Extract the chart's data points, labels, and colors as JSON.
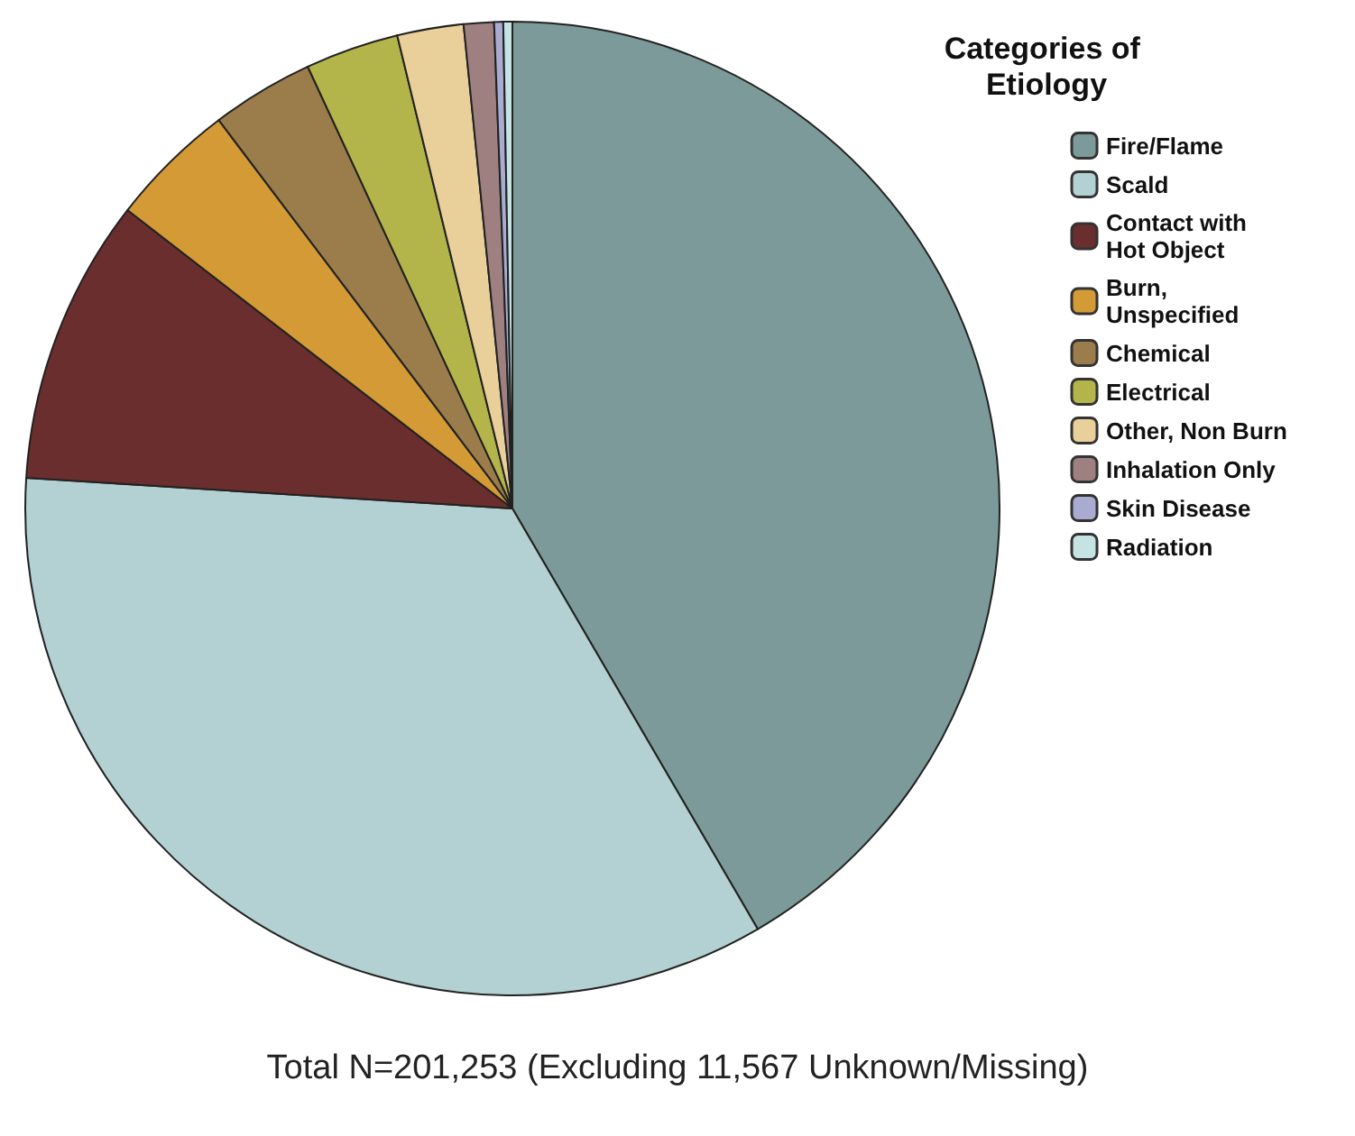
{
  "chart_data": {
    "type": "pie",
    "legend_title": "Categories of Etiology",
    "legend": "right",
    "categories": [
      "Fire/Flame",
      "Scald",
      "Contact with Hot Object",
      "Burn, Unspecified",
      "Chemical",
      "Electrical",
      "Other, Non Burn",
      "Inhalation Only",
      "Skin Disease",
      "Radiation"
    ],
    "values": [
      41.6,
      34.4,
      9.5,
      4.2,
      3.4,
      3.1,
      2.2,
      1.0,
      0.3,
      0.3
    ],
    "colors": [
      "#7b9a99",
      "#b3d1d2",
      "#6b2e2e",
      "#d39a35",
      "#9b7d4b",
      "#b3b54a",
      "#e9d09a",
      "#9e8080",
      "#aaabd0",
      "#c5e3e3"
    ],
    "annotations": [
      "Total N=201,253 (Excluding 11,567 Unknown/Missing)"
    ]
  }
}
